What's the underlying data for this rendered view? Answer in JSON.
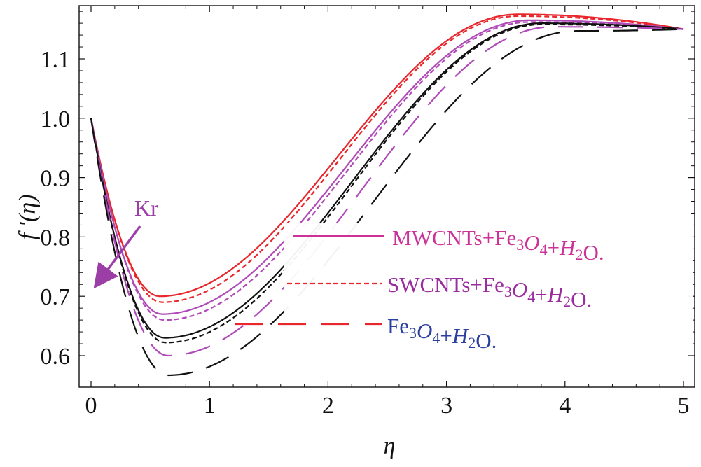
{
  "chart_data": {
    "type": "line",
    "title": "",
    "xlabel": "η",
    "ylabel": "f ′(η)",
    "xlim": [
      0,
      5
    ],
    "ylim": [
      0.54,
      1.19
    ],
    "xticks": [
      "0",
      "1",
      "2",
      "3",
      "4",
      "5"
    ],
    "yticks": [
      "0.6",
      "0.7",
      "0.8",
      "0.9",
      "1.0",
      "1.1"
    ],
    "xtick_values": [
      0,
      1,
      2,
      3,
      4,
      5
    ],
    "ytick_values": [
      0.6,
      0.7,
      0.8,
      0.9,
      1.0,
      1.1
    ],
    "grid": false,
    "annotation": {
      "text": "Kr",
      "color": "#9b3fa6"
    },
    "legend": [
      {
        "label": "MWCNTs+Fe3O4+H2O.",
        "style": "solid",
        "color": "#cc3399",
        "parts": [
          [
            "MWCNTs+Fe",
            ""
          ],
          [
            "3",
            "sub"
          ],
          [
            "O",
            "it"
          ],
          [
            "4",
            "sub"
          ],
          [
            "+",
            ""
          ],
          [
            "H",
            "it"
          ],
          [
            "2",
            "sub"
          ],
          [
            "O.",
            ""
          ]
        ]
      },
      {
        "label": "SWCNTs+Fe3O4+H2O.",
        "style": "short-dash",
        "color": "#9b2ca0",
        "parts": [
          [
            "SWCNTs+Fe",
            ""
          ],
          [
            "3",
            "sub"
          ],
          [
            "O",
            "it"
          ],
          [
            "4",
            "sub"
          ],
          [
            "+",
            ""
          ],
          [
            "H",
            "it"
          ],
          [
            "2",
            "sub"
          ],
          [
            "O.",
            ""
          ]
        ]
      },
      {
        "label": "Fe3O4+H2O.",
        "style": "long-dash",
        "color": "#2b3fa0",
        "parts": [
          [
            "Fe",
            ""
          ],
          [
            "3",
            "sub"
          ],
          [
            "O",
            "it"
          ],
          [
            "4",
            "sub"
          ],
          [
            "+",
            ""
          ],
          [
            "H",
            "it"
          ],
          [
            "2",
            "sub"
          ],
          [
            "O.",
            ""
          ]
        ]
      }
    ],
    "series": [
      {
        "name": "MWCNTs+Fe3O4+H2O (Kr low)",
        "color": "#e8262b",
        "style": "solid",
        "min_x": 0.58,
        "min_y": 0.7,
        "peak_x": 3.6,
        "peak_y": 1.175
      },
      {
        "name": "SWCNTs+Fe3O4+H2O (Kr low)",
        "color": "#e8262b",
        "style": "short-dash",
        "min_x": 0.6,
        "min_y": 0.69,
        "peak_x": 3.6,
        "peak_y": 1.172
      },
      {
        "name": "MWCNTs+Fe3O4+H2O (Kr mid)",
        "color": "#b04ab8",
        "style": "solid",
        "min_x": 0.6,
        "min_y": 0.67,
        "peak_x": 3.7,
        "peak_y": 1.165
      },
      {
        "name": "SWCNTs+Fe3O4+H2O (Kr mid)",
        "color": "#b04ab8",
        "style": "short-dash",
        "min_x": 0.62,
        "min_y": 0.66,
        "peak_x": 3.7,
        "peak_y": 1.162
      },
      {
        "name": "MWCNTs+Fe3O4+H2O (Kr high)",
        "color": "#111111",
        "style": "solid",
        "min_x": 0.62,
        "min_y": 0.63,
        "peak_x": 3.8,
        "peak_y": 1.16
      },
      {
        "name": "SWCNTs+Fe3O4+H2O (Kr high)",
        "color": "#111111",
        "style": "short-dash",
        "min_x": 0.63,
        "min_y": 0.622,
        "peak_x": 3.8,
        "peak_y": 1.158
      },
      {
        "name": "Fe3O4+H2O (Kr mid)",
        "color": "#b04ab8",
        "style": "long-dash",
        "min_x": 0.65,
        "min_y": 0.6,
        "peak_x": 3.9,
        "peak_y": 1.154
      },
      {
        "name": "Fe3O4+H2O (Kr high)",
        "color": "#111111",
        "style": "long-dash",
        "min_x": 0.65,
        "min_y": 0.567,
        "peak_x": 4.1,
        "peak_y": 1.147
      }
    ],
    "end_value_x5": 1.15,
    "start_value_x0": 1.0
  },
  "colors": {
    "axis": "#111111",
    "kr_arrow": "#9b3fa6",
    "legend_solid_line": "#cc3399",
    "legend_short_dash_line": "#e8262b",
    "legend_long_dash_line": "#e8262b"
  }
}
